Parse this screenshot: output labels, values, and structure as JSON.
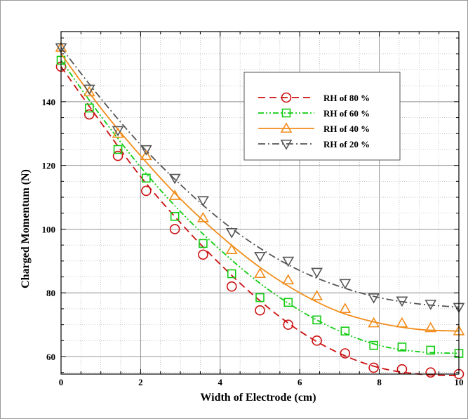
{
  "chart_data": {
    "type": "line",
    "title": "",
    "xlabel": "Width of Electrode (cm)",
    "ylabel": "Charged Momentum (N)",
    "xlim": [
      0,
      10
    ],
    "ylim": [
      54.5,
      162
    ],
    "x_ticks": [
      0,
      2,
      4,
      6,
      8,
      10
    ],
    "y_ticks": [
      60,
      80,
      100,
      120,
      140
    ],
    "x_minor_step": 0.5,
    "y_minor_step": 5,
    "grid": true,
    "legend_position": "top-right",
    "series": [
      {
        "name": "RH of 80 %",
        "color": "#cc1111",
        "line_style": "dashed",
        "marker": "circle",
        "fit": [
          [
            0,
            151
          ],
          [
            1,
            133.5
          ],
          [
            2,
            116.5
          ],
          [
            3,
            102
          ],
          [
            4,
            89
          ],
          [
            5,
            77.5
          ],
          [
            6,
            68
          ],
          [
            7,
            61
          ],
          [
            8,
            56.5
          ],
          [
            9,
            54.5
          ],
          [
            10,
            54
          ]
        ],
        "x": [
          0,
          0.71,
          1.43,
          2.14,
          2.86,
          3.57,
          4.29,
          5.0,
          5.71,
          6.43,
          7.14,
          7.86,
          8.57,
          9.29,
          10.0
        ],
        "y": [
          151,
          136,
          123,
          112,
          100,
          92,
          82,
          74.5,
          70,
          65,
          61,
          56.5,
          56,
          55,
          54.5
        ]
      },
      {
        "name": "RH of 60 %",
        "color": "#11cc11",
        "line_style": "dash-dot-dot",
        "marker": "square",
        "fit": [
          [
            0,
            153
          ],
          [
            1,
            135.5
          ],
          [
            2,
            119.5
          ],
          [
            3,
            105.5
          ],
          [
            4,
            93.5
          ],
          [
            5,
            83
          ],
          [
            6,
            74.5
          ],
          [
            7,
            68
          ],
          [
            8,
            63.5
          ],
          [
            9,
            61.5
          ],
          [
            10,
            61
          ]
        ],
        "x": [
          0,
          0.71,
          1.43,
          2.14,
          2.86,
          3.57,
          4.29,
          5.0,
          5.71,
          6.43,
          7.14,
          7.86,
          8.57,
          9.29,
          10.0
        ],
        "y": [
          153,
          138,
          125,
          116,
          104,
          95.5,
          86,
          78.5,
          77,
          71.5,
          68,
          63.5,
          63,
          62,
          61
        ]
      },
      {
        "name": "RH of 40 %",
        "color": "#f28c1a",
        "line_style": "solid",
        "marker": "triangle-up",
        "fit": [
          [
            0,
            155
          ],
          [
            1,
            138
          ],
          [
            2,
            123
          ],
          [
            3,
            109.5
          ],
          [
            4,
            98
          ],
          [
            5,
            88
          ],
          [
            6,
            80
          ],
          [
            7,
            74
          ],
          [
            8,
            70.5
          ],
          [
            9,
            68.5
          ],
          [
            10,
            68
          ]
        ],
        "x": [
          0,
          0.71,
          1.43,
          2.14,
          2.86,
          3.57,
          4.29,
          5.0,
          5.71,
          6.43,
          7.14,
          7.86,
          8.57,
          9.29,
          10.0
        ],
        "y": [
          157,
          143,
          130,
          123,
          110.5,
          103.5,
          93.5,
          86,
          84,
          79,
          75,
          70.5,
          70.5,
          69,
          68
        ]
      },
      {
        "name": "RH of 20 %",
        "color": "#555555",
        "line_style": "dash-dot",
        "marker": "triangle-down",
        "fit": [
          [
            0,
            157
          ],
          [
            1,
            141
          ],
          [
            2,
            126.5
          ],
          [
            3,
            114
          ],
          [
            4,
            103
          ],
          [
            5,
            94
          ],
          [
            6,
            87
          ],
          [
            7,
            82
          ],
          [
            8,
            78.5
          ],
          [
            9,
            76.5
          ],
          [
            10,
            75.5
          ]
        ],
        "x": [
          0,
          0.71,
          1.43,
          2.14,
          2.86,
          3.57,
          4.29,
          5.0,
          5.71,
          6.43,
          7.14,
          7.86,
          8.57,
          9.29,
          10.0
        ],
        "y": [
          157,
          144,
          131,
          125,
          116,
          109,
          99,
          91.5,
          90,
          86.5,
          83,
          78.5,
          77.5,
          76.5,
          75.5
        ]
      }
    ]
  }
}
